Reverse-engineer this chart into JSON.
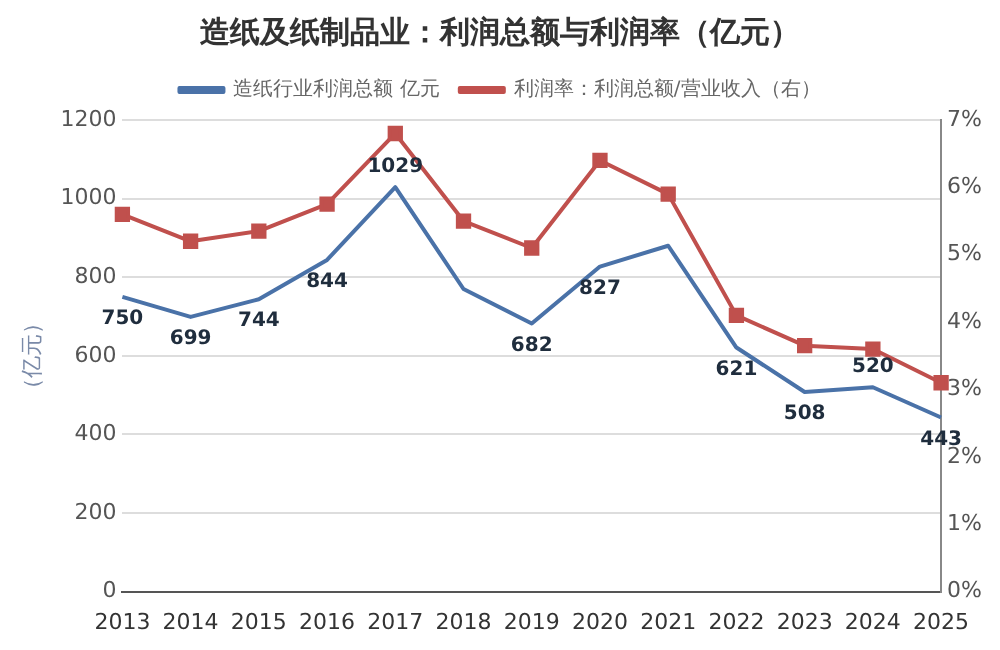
{
  "chart_data": {
    "type": "line",
    "title": "造纸及纸制品业：利润总额与利润率（亿元）",
    "ylabel": "（亿元）",
    "categories": [
      "2013",
      "2014",
      "2015",
      "2016",
      "2017",
      "2018",
      "2019",
      "2020",
      "2021",
      "2022",
      "2023",
      "2024",
      "2025"
    ],
    "series": [
      {
        "name": "造纸行业利润总额 亿元",
        "color": "#4a72a8",
        "marker": "none",
        "values": [
          750,
          699,
          744,
          844,
          1029,
          770,
          682,
          827,
          880,
          621,
          508,
          520,
          443
        ],
        "value_labels": [
          "750",
          "699",
          "744",
          "844",
          "1029",
          null,
          "682",
          "827",
          null,
          "621",
          "508",
          "520",
          "443"
        ]
      },
      {
        "name": "利润率：利润总额/营业收入（右）",
        "color": "#c0504d",
        "marker": "square",
        "axis": "y2",
        "values": [
          5.6,
          5.2,
          5.35,
          5.75,
          6.8,
          5.5,
          5.1,
          6.4,
          5.9,
          4.1,
          3.65,
          3.6,
          3.1
        ]
      }
    ],
    "ylim": [
      0,
      1200
    ],
    "yticks": [
      0,
      200,
      400,
      600,
      800,
      1000,
      1200
    ],
    "y2lim": [
      0,
      7
    ],
    "y2ticks": [
      {
        "value": 0,
        "label": "0%"
      },
      {
        "value": 1,
        "label": "1%"
      },
      {
        "value": 2,
        "label": "2%"
      },
      {
        "value": 3,
        "label": "3%"
      },
      {
        "value": 4,
        "label": "4%"
      },
      {
        "value": 5,
        "label": "5%"
      },
      {
        "value": 6,
        "label": "6%"
      },
      {
        "value": 7,
        "label": "7%"
      }
    ],
    "grid": "y",
    "legend": "top",
    "line_style": "solid"
  }
}
